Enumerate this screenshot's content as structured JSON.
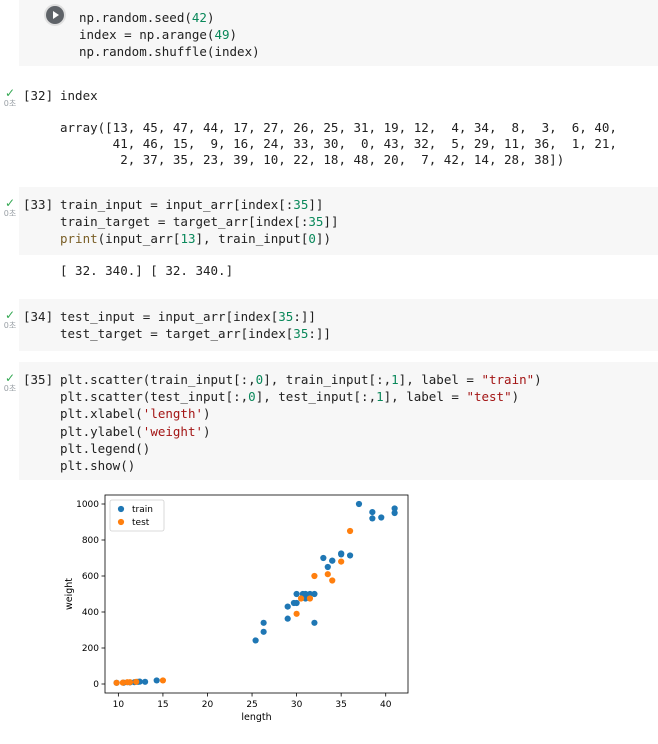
{
  "cells": [
    {
      "status": "✓",
      "duration": "0초",
      "exec_count": "",
      "lines": [
        [
          {
            "t": "np.random.seed("
          },
          {
            "t": "42",
            "c": "num"
          },
          {
            "t": ")"
          }
        ],
        [
          {
            "t": "index = np.arange("
          },
          {
            "t": "49",
            "c": "num"
          },
          {
            "t": ")"
          }
        ],
        [
          {
            "t": "np.random.shuffle(index)"
          }
        ]
      ],
      "output": ""
    },
    {
      "status": "✓",
      "duration": "0초",
      "exec_count": "[32]",
      "lines": [
        [
          {
            "t": "index"
          }
        ]
      ],
      "output": "array([13, 45, 47, 44, 17, 27, 26, 25, 31, 19, 12,  4, 34,  8,  3,  6, 40,\n       41, 46, 15,  9, 16, 24, 33, 30,  0, 43, 32,  5, 29, 11, 36,  1, 21,\n        2, 37, 35, 23, 39, 10, 22, 18, 48, 20,  7, 42, 14, 28, 38])"
    },
    {
      "status": "✓",
      "duration": "0초",
      "exec_count": "[33]",
      "lines": [
        [
          {
            "t": "train_input = input_arr[index[:"
          },
          {
            "t": "35",
            "c": "num"
          },
          {
            "t": "]]"
          }
        ],
        [
          {
            "t": "train_target = target_arr[index[:"
          },
          {
            "t": "35",
            "c": "num"
          },
          {
            "t": "]]"
          }
        ],
        [
          {
            "t": "print",
            "c": "kw"
          },
          {
            "t": "(input_arr["
          },
          {
            "t": "13",
            "c": "num"
          },
          {
            "t": "], train_input["
          },
          {
            "t": "0",
            "c": "num"
          },
          {
            "t": "])"
          }
        ]
      ],
      "output": "[ 32. 340.] [ 32. 340.]"
    },
    {
      "status": "✓",
      "duration": "0초",
      "exec_count": "[34]",
      "lines": [
        [
          {
            "t": "test_input = input_arr[index["
          },
          {
            "t": "35",
            "c": "num"
          },
          {
            "t": ":]]"
          }
        ],
        [
          {
            "t": "test_target = target_arr[index["
          },
          {
            "t": "35",
            "c": "num"
          },
          {
            "t": ":]]"
          }
        ]
      ],
      "output": ""
    },
    {
      "status": "✓",
      "duration": "0초",
      "exec_count": "[35]",
      "lines": [
        [
          {
            "t": "plt.scatter(train_input[:,"
          },
          {
            "t": "0",
            "c": "num"
          },
          {
            "t": "], train_input[:,"
          },
          {
            "t": "1",
            "c": "num"
          },
          {
            "t": "], label = "
          },
          {
            "t": "\"train\"",
            "c": "str"
          },
          {
            "t": ")"
          }
        ],
        [
          {
            "t": "plt.scatter(test_input[:,"
          },
          {
            "t": "0",
            "c": "num"
          },
          {
            "t": "], test_input[:,"
          },
          {
            "t": "1",
            "c": "num"
          },
          {
            "t": "], label = "
          },
          {
            "t": "\"test\"",
            "c": "str"
          },
          {
            "t": ")"
          }
        ],
        [
          {
            "t": "plt.xlabel("
          },
          {
            "t": "'length'",
            "c": "str"
          },
          {
            "t": ")"
          }
        ],
        [
          {
            "t": "plt.ylabel("
          },
          {
            "t": "'weight'",
            "c": "str"
          },
          {
            "t": ")"
          }
        ],
        [
          {
            "t": "plt.legend()"
          }
        ],
        [
          {
            "t": "plt.show()"
          }
        ]
      ],
      "output": ""
    }
  ],
  "chart_data": {
    "type": "scatter",
    "xlabel": "length",
    "ylabel": "weight",
    "xlim": [
      8.5,
      42.5
    ],
    "ylim": [
      -50,
      1050
    ],
    "xticks": [
      10,
      15,
      20,
      25,
      30,
      35,
      40
    ],
    "yticks": [
      0,
      200,
      400,
      600,
      800,
      1000
    ],
    "legend": "upper left",
    "grid": false,
    "series": [
      {
        "name": "train",
        "color": "#1f77b4",
        "x": [
          32,
          37,
          41,
          9.8,
          14.3,
          13,
          11.3,
          10.6,
          30,
          33,
          30.7,
          25.4,
          31,
          29,
          26.3,
          35,
          31.5,
          41,
          34,
          36,
          26.3,
          33.5,
          30,
          32,
          39.5,
          38.5,
          29.7,
          35,
          34,
          11.8,
          12.2,
          12.4,
          29,
          31,
          38.5
        ],
        "y": [
          340,
          1000,
          975,
          6.7,
          19.7,
          12.2,
          8.7,
          7.0,
          500,
          700,
          500,
          242,
          500,
          430,
          290,
          725,
          500,
          950,
          685,
          714,
          340,
          650,
          450,
          500,
          925,
          955,
          450,
          720,
          685,
          10,
          12,
          13,
          363,
          475,
          920
        ]
      },
      {
        "name": "test",
        "color": "#ff7f0e",
        "x": [
          35,
          11,
          36,
          33.5,
          31.5,
          10.5,
          30,
          32,
          15,
          11.3,
          9.8,
          34,
          12,
          30.5
        ],
        "y": [
          680,
          9.9,
          850,
          610,
          475,
          7.5,
          390,
          600,
          19.9,
          9.8,
          6.7,
          575,
          12,
          475
        ]
      }
    ]
  }
}
